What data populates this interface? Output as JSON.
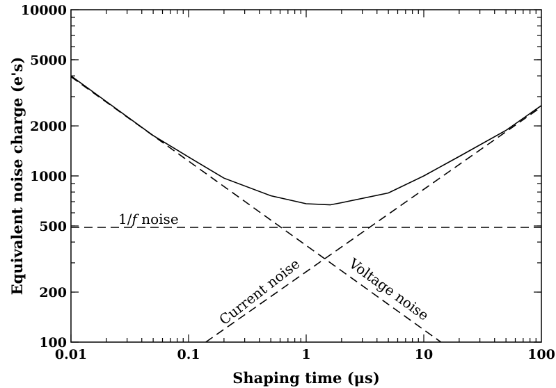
{
  "chart_data": {
    "type": "line",
    "xlabel": "Shaping time (μs)",
    "ylabel": "Equivalent noise charge (e's)",
    "xscale": "log",
    "yscale": "log",
    "xlim": [
      0.01,
      100
    ],
    "ylim": [
      100,
      10000
    ],
    "x_ticks": [
      {
        "value": 0.01,
        "label": "0.01"
      },
      {
        "value": 0.1,
        "label": "0.1"
      },
      {
        "value": 1,
        "label": "1"
      },
      {
        "value": 10,
        "label": "10"
      },
      {
        "value": 100,
        "label": "100"
      }
    ],
    "y_ticks": [
      {
        "value": 100,
        "label": "100"
      },
      {
        "value": 200,
        "label": "200"
      },
      {
        "value": 500,
        "label": "500"
      },
      {
        "value": 1000,
        "label": "1000"
      },
      {
        "value": 2000,
        "label": "2000"
      },
      {
        "value": 5000,
        "label": "5000"
      },
      {
        "value": 10000,
        "label": "10000"
      }
    ],
    "grid": false,
    "series": [
      {
        "style": "solid",
        "color": "#000000",
        "x": [
          0.01,
          0.02,
          0.05,
          0.1,
          0.2,
          0.5,
          1,
          1.6,
          2,
          5,
          10,
          20,
          50,
          100
        ],
        "y": [
          4000,
          2800,
          1750,
          1300,
          970,
          760,
          680,
          670,
          690,
          790,
          1000,
          1310,
          1880,
          2650
        ]
      },
      {
        "label": "Voltage noise",
        "style": "dashed",
        "color": "#000000",
        "x": [
          0.01,
          14
        ],
        "y": [
          3950,
          100
        ]
      },
      {
        "label": "Current noise",
        "style": "dashed",
        "color": "#000000",
        "x": [
          0.14,
          100
        ],
        "y": [
          100,
          2600
        ]
      },
      {
        "label": "1/f noise",
        "style": "dashed",
        "color": "#000000",
        "x": [
          0.01,
          100
        ],
        "y": [
          490,
          490
        ]
      }
    ],
    "annotations": [
      {
        "text": "1/",
        "italic_part": "f",
        "rest": " noise"
      },
      {
        "text": "Current noise"
      },
      {
        "text": "Voltage noise"
      }
    ]
  }
}
